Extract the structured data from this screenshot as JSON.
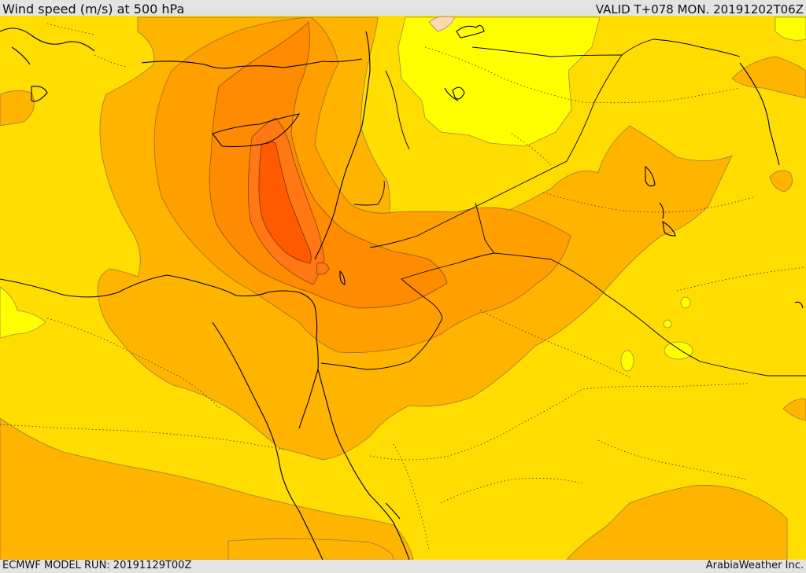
{
  "header": {
    "title": "Wind speed (m/s) at 500 hPa",
    "valid_time": "VALID T+078 MON. 20191202T06Z"
  },
  "footer": {
    "model_run": "ECMWF MODEL RUN: 20191129T00Z",
    "credit": "ArabiaWeather Inc."
  },
  "colors": {
    "band_10": "#ffff00",
    "band_15": "#ffdd00",
    "band_20": "#ffb400",
    "band_25": "#ffa000",
    "band_30": "#ff8c00",
    "band_35": "#ff7814",
    "band_40": "#ff5a00",
    "low_wind": "#fbd7b4"
  }
}
